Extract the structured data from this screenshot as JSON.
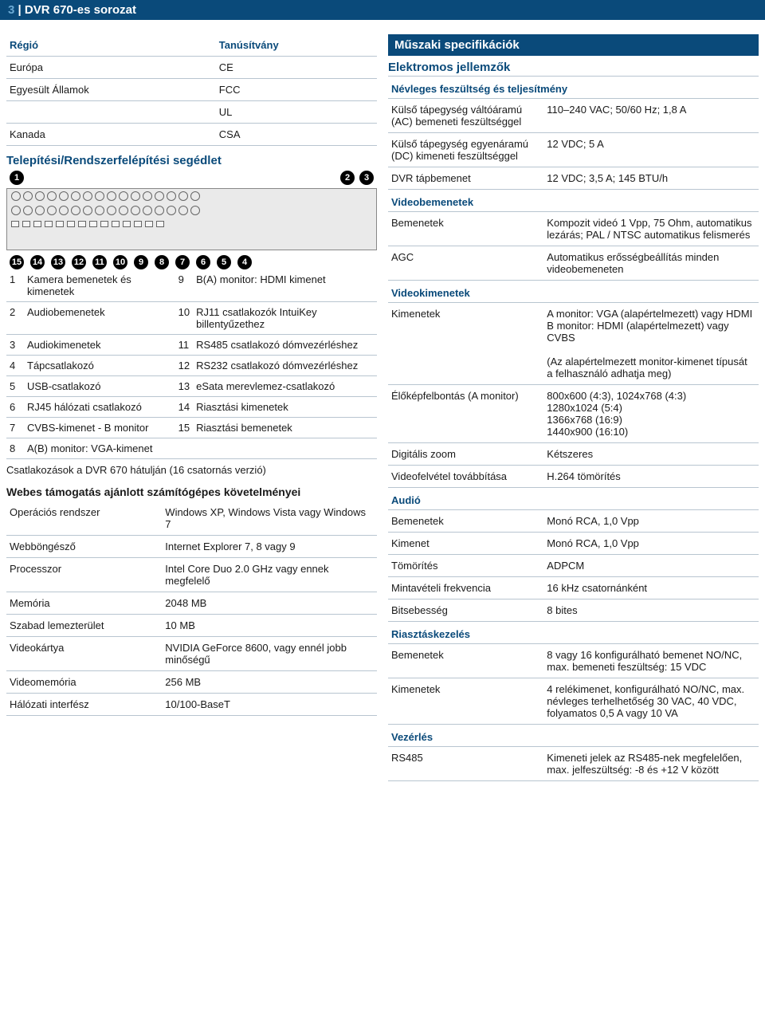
{
  "header": {
    "page_number": "3",
    "title": "DVR 670-es sorozat"
  },
  "colors": {
    "brand": "#0a4a7a",
    "rule": "#b8c5d0"
  },
  "cert_table": {
    "headers": [
      "Régió",
      "Tanúsítvány"
    ],
    "rows": [
      [
        "Európa",
        "CE"
      ],
      [
        "Egyesült Államok",
        "FCC"
      ],
      [
        "",
        "UL"
      ],
      [
        "Kanada",
        "CSA"
      ]
    ]
  },
  "install_title": "Telepítési/Rendszerfelépítési segédlet",
  "diagram": {
    "top_callouts": [
      "1",
      "2",
      "3"
    ],
    "bottom_callouts": [
      "15",
      "14",
      "13",
      "12",
      "11",
      "10",
      "9",
      "8",
      "7",
      "6",
      "5",
      "4"
    ]
  },
  "legend": {
    "rows": [
      [
        "1",
        "Kamera bemenetek és kimenetek",
        "9",
        "B(A) monitor: HDMI kimenet"
      ],
      [
        "2",
        "Audiobemenetek",
        "10",
        "RJ11 csatlakozók IntuiKey billentyűzethez"
      ],
      [
        "3",
        "Audiokimenetek",
        "11",
        "RS485 csatlakozó dómvezérléshez"
      ],
      [
        "4",
        "Tápcsatlakozó",
        "12",
        "RS232 csatlakozó dómvezérléshez"
      ],
      [
        "5",
        "USB-csatlakozó",
        "13",
        "eSata merevlemez-csatlakozó"
      ],
      [
        "6",
        "RJ45 hálózati csatlakozó",
        "14",
        "Riasztási kimenetek"
      ],
      [
        "7",
        "CVBS-kimenet - B monitor",
        "15",
        "Riasztási bemenetek"
      ],
      [
        "8",
        "A(B) monitor: VGA-kimenet",
        "",
        ""
      ]
    ],
    "caption": "Csatlakozások a DVR 670 hátulján (16 csatornás verzió)"
  },
  "web_req": {
    "title": "Webes támogatás ajánlott számítógépes követelményei",
    "rows": [
      [
        "Operációs rendszer",
        "Windows XP, Windows Vista vagy Windows 7"
      ],
      [
        "Webböngésző",
        "Internet Explorer 7, 8 vagy 9"
      ],
      [
        "Processzor",
        "Intel Core Duo 2.0 GHz vagy ennek megfelelő"
      ],
      [
        "Memória",
        "2048 MB"
      ],
      [
        "Szabad lemezterület",
        "10 MB"
      ],
      [
        "Videokártya",
        "NVIDIA GeForce 8600, vagy ennél jobb minőségű"
      ],
      [
        "Videomemória",
        "256 MB"
      ],
      [
        "Hálózati interfész",
        "10/100-BaseT"
      ]
    ]
  },
  "specs": {
    "title": "Műszaki specifikációk",
    "electrical": {
      "title": "Elektromos jellemzők",
      "sub": "Névleges feszültség és teljesítmény",
      "rows": [
        [
          "Külső tápegység váltóáramú (AC) bemeneti feszültséggel",
          "110–240 VAC; 50/60 Hz; 1,8 A"
        ],
        [
          "Külső tápegység egyenáramú (DC) kimeneti feszültséggel",
          "12 VDC; 5 A"
        ],
        [
          "DVR tápbemenet",
          "12 VDC; 3,5 A; 145 BTU/h"
        ]
      ]
    },
    "video_in": {
      "title": "Videobemenetek",
      "rows": [
        [
          "Bemenetek",
          "Kompozit videó 1 Vpp, 75 Ohm, automatikus lezárás; PAL / NTSC automatikus felismerés"
        ],
        [
          "AGC",
          "Automatikus erősségbeállítás minden videobemeneten"
        ]
      ]
    },
    "video_out": {
      "title": "Videokimenetek",
      "rows": [
        [
          "Kimenetek",
          "A monitor: VGA (alapértelmezett) vagy HDMI\nB monitor: HDMI (alapértelmezett) vagy CVBS\n\n(Az alapértelmezett monitor-kimenet típusát a felhasználó adhatja meg)"
        ],
        [
          "Élőképfelbontás (A monitor)",
          "800x600 (4:3), 1024x768 (4:3)\n1280x1024 (5:4)\n1366x768 (16:9)\n1440x900 (16:10)"
        ],
        [
          "Digitális zoom",
          "Kétszeres"
        ],
        [
          "Videofelvétel továbbítása",
          "H.264 tömörítés"
        ]
      ]
    },
    "audio": {
      "title": "Audió",
      "rows": [
        [
          "Bemenetek",
          "Monó RCA, 1,0 Vpp"
        ],
        [
          "Kimenet",
          "Monó RCA, 1,0 Vpp"
        ],
        [
          "Tömörítés",
          "ADPCM"
        ],
        [
          "Mintavételi frekvencia",
          "16 kHz csatornánként"
        ],
        [
          "Bitsebesség",
          "8 bites"
        ]
      ]
    },
    "alarm": {
      "title": "Riasztáskezelés",
      "rows": [
        [
          "Bemenetek",
          "8 vagy 16 konfigurálható bemenet NO/NC, max. bemeneti feszültség: 15 VDC"
        ],
        [
          "Kimenetek",
          "4 relékimenet, konfigurálható NO/NC, max. névleges terhelhetőség 30 VAC, 40 VDC, folyamatos 0,5 A vagy 10 VA"
        ]
      ]
    },
    "control": {
      "title": "Vezérlés",
      "rows": [
        [
          "RS485",
          "Kimeneti jelek az RS485-nek megfelelően, max. jelfeszültség: -8 és +12 V között"
        ]
      ]
    }
  }
}
